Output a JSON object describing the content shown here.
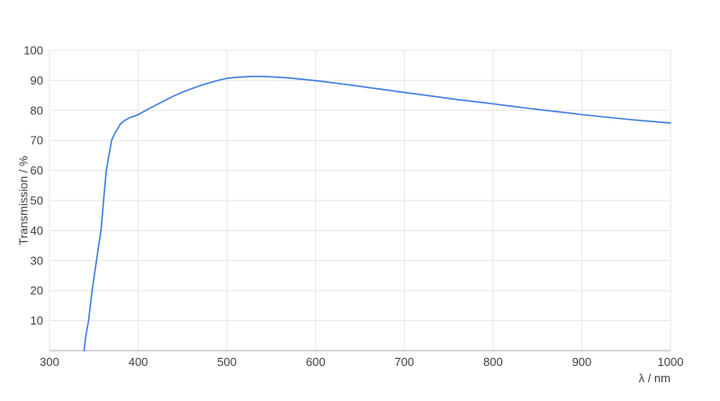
{
  "chart_data": {
    "type": "line",
    "title": "",
    "xlabel": "λ / nm",
    "ylabel": "Transmission / %",
    "xlim": [
      300,
      1000
    ],
    "ylim": [
      0,
      100
    ],
    "x_ticks": [
      300,
      400,
      500,
      600,
      700,
      800,
      900,
      1000
    ],
    "y_ticks": [
      10,
      20,
      30,
      40,
      50,
      60,
      70,
      80,
      90,
      100
    ],
    "grid": true,
    "legend_position": "none",
    "colors": {
      "line": "#3e7de0",
      "grid": "#e6e6e6",
      "axis": "#b0b0b0",
      "text": "#404040",
      "background": "#ffffff"
    },
    "series": [
      {
        "name": "Transmission",
        "x": [
          339,
          341,
          344,
          348,
          353,
          358,
          361,
          364,
          367,
          370,
          373,
          376,
          380,
          385,
          390,
          400,
          410,
          420,
          430,
          440,
          450,
          460,
          470,
          480,
          490,
          500,
          510,
          520,
          530,
          540,
          550,
          560,
          570,
          580,
          590,
          600,
          620,
          640,
          660,
          680,
          700,
          720,
          740,
          760,
          780,
          800,
          820,
          840,
          860,
          880,
          900,
          920,
          940,
          960,
          980,
          1000
        ],
        "y": [
          0,
          5,
          10,
          20,
          30,
          40,
          50,
          60,
          65,
          70,
          72,
          73.5,
          75.5,
          76.7,
          77.5,
          78.6,
          80.2,
          81.8,
          83.3,
          84.8,
          86.1,
          87.2,
          88.3,
          89.2,
          90.0,
          90.7,
          91.0,
          91.2,
          91.3,
          91.3,
          91.2,
          91.0,
          90.8,
          90.5,
          90.2,
          89.9,
          89.2,
          88.4,
          87.6,
          86.8,
          86.0,
          85.2,
          84.4,
          83.6,
          82.9,
          82.2,
          81.4,
          80.7,
          80.0,
          79.3,
          78.6,
          78.0,
          77.4,
          76.8,
          76.3,
          75.8
        ]
      }
    ]
  }
}
